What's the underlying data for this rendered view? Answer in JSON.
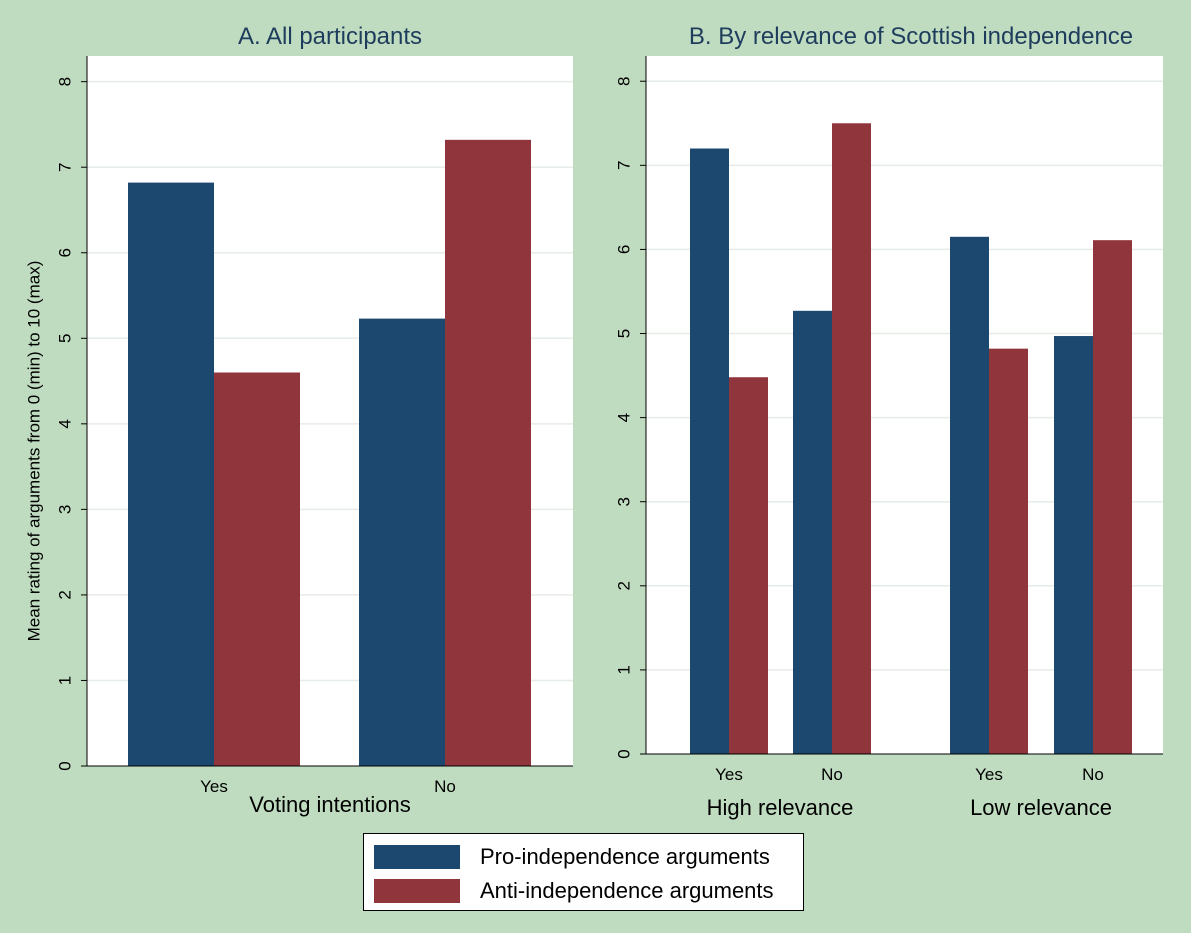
{
  "colors": {
    "background": "#c0dcc0",
    "plot_bg": "#ffffff",
    "grid": "#e6ece6",
    "pro": "#1c476f",
    "anti": "#90353b",
    "title": "#1e3c5c"
  },
  "legend": {
    "pro_label": "Pro-independence arguments",
    "anti_label": "Anti-independence arguments"
  },
  "chart_data": [
    {
      "type": "bar",
      "title": "A. All participants",
      "ylabel": "Mean rating of arguments from 0 (min) to 10 (max)",
      "xlabel": "Voting intentions",
      "ylim": [
        0,
        8.3
      ],
      "yticks": [
        "0",
        "1",
        "2",
        "3",
        "4",
        "5",
        "6",
        "7",
        "8"
      ],
      "categories": [
        "Yes",
        "No"
      ],
      "series": [
        {
          "name": "Pro-independence arguments",
          "values": [
            6.82,
            5.23
          ]
        },
        {
          "name": "Anti-independence arguments",
          "values": [
            4.6,
            7.32
          ]
        }
      ]
    },
    {
      "type": "bar",
      "title": "B. By relevance of Scottish independence",
      "ylim": [
        0,
        8.3
      ],
      "yticks": [
        "0",
        "1",
        "2",
        "3",
        "4",
        "5",
        "6",
        "7",
        "8"
      ],
      "groups": [
        "High relevance",
        "Low relevance"
      ],
      "categories": [
        "Yes",
        "No",
        "Yes",
        "No"
      ],
      "series": [
        {
          "name": "Pro-independence arguments",
          "values": [
            7.2,
            5.27,
            6.15,
            4.97
          ]
        },
        {
          "name": "Anti-independence arguments",
          "values": [
            4.48,
            7.5,
            4.82,
            6.11
          ]
        }
      ]
    }
  ]
}
